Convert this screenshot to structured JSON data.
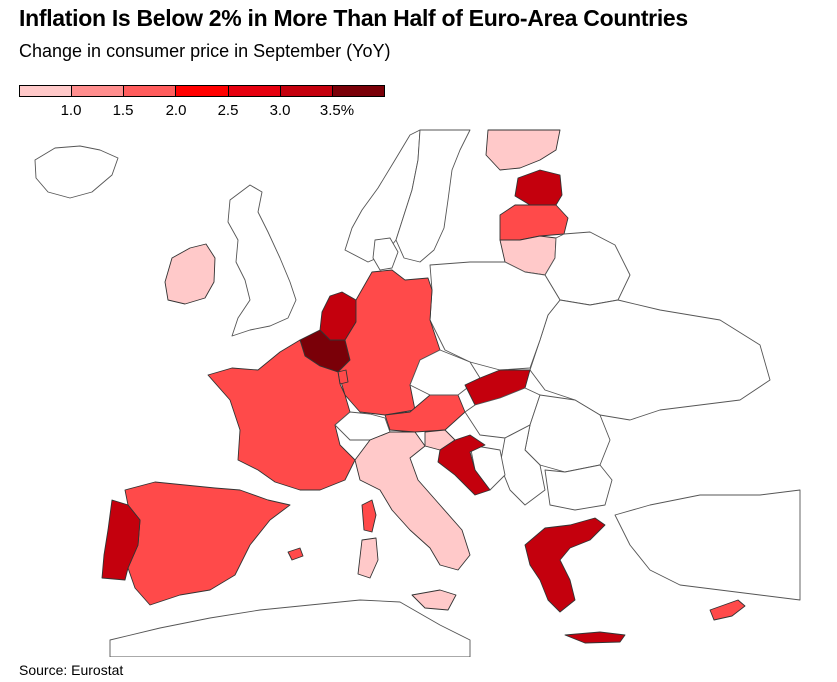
{
  "header": {
    "title": "Inflation Is Below 2% in More Than Half of Euro-Area Countries",
    "subtitle": "Change in consumer price in September (YoY)"
  },
  "legend": {
    "colors": [
      "#ffc9c9",
      "#ff8e8e",
      "#ff5c5c",
      "#ff0000",
      "#e6000f",
      "#c4000d",
      "#7a0008"
    ],
    "labels": [
      "1.0",
      "1.5",
      "2.0",
      "2.5",
      "3.0",
      "3.5%"
    ]
  },
  "map": {
    "colors": {
      "non_euro_fill": "#ffffff",
      "border": "#555555",
      "light": "#ffc9c9",
      "mid": "#ff4a4a",
      "dark": "#c4000d",
      "darkest": "#7a0008"
    }
  },
  "footer": {
    "source": "Source: Eurostat"
  }
}
